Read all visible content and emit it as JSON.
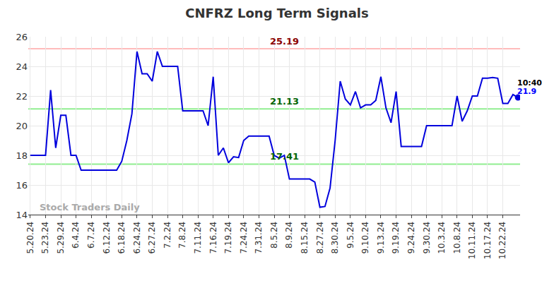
{
  "chart_data": {
    "type": "line",
    "title": "CNFRZ Long Term Signals",
    "watermark": "Stock Traders Daily",
    "color": "#0000dd",
    "grid": true,
    "ylim": [
      14,
      26
    ],
    "yticks": [
      14,
      16,
      18,
      20,
      22,
      24,
      26
    ],
    "categories": [
      "5.20.24",
      null,
      null,
      "5.23.24",
      null,
      null,
      "5.29.24",
      null,
      null,
      "6.4.24",
      null,
      null,
      "6.7.24",
      null,
      null,
      "6.12.24",
      null,
      null,
      "6.18.24",
      null,
      null,
      "6.24.24",
      null,
      null,
      "6.27.24",
      null,
      null,
      "7.2.24",
      null,
      null,
      "7.8.24",
      null,
      null,
      "7.11.24",
      null,
      null,
      "7.16.24",
      null,
      null,
      "7.19.24",
      null,
      null,
      "7.24.24",
      null,
      null,
      "7.31.24",
      null,
      null,
      "8.5.24",
      null,
      null,
      "8.9.24",
      null,
      null,
      "8.15.24",
      null,
      null,
      "8.27.24",
      null,
      null,
      "8.30.24",
      null,
      null,
      "9.5.24",
      null,
      null,
      "9.10.24",
      null,
      null,
      "9.13.24",
      null,
      null,
      "9.19.24",
      null,
      null,
      "9.24.24",
      null,
      null,
      "9.30.24",
      null,
      null,
      "10.3.24",
      null,
      null,
      "10.8.24",
      null,
      null,
      "10.11.24",
      null,
      null,
      "10.17.24",
      null,
      null,
      "10.22.24",
      null,
      null,
      null
    ],
    "values": [
      18,
      18,
      18,
      18,
      22.4,
      18.5,
      20.7,
      20.7,
      18,
      18,
      17,
      17,
      17,
      17,
      17,
      17,
      17,
      17,
      17.6,
      19,
      20.8,
      25,
      23.5,
      23.5,
      23,
      25,
      24,
      24,
      24,
      24,
      21,
      21,
      21,
      21,
      21,
      20,
      23.3,
      18,
      18.5,
      17.5,
      17.9,
      17.85,
      19,
      19.3,
      19.3,
      19.3,
      19.3,
      19.3,
      18,
      17.8,
      18,
      16.4,
      16.4,
      16.4,
      16.4,
      16.4,
      16.2,
      14.5,
      14.55,
      15.8,
      19,
      23,
      21.8,
      21.4,
      22.3,
      21.2,
      21.4,
      21.4,
      21.7,
      23.3,
      21.2,
      20.2,
      22.3,
      18.6,
      18.6,
      18.6,
      18.6,
      18.6,
      20,
      20,
      20,
      20,
      20,
      20,
      22,
      20.3,
      21,
      22,
      22,
      23.2,
      23.2,
      23.25,
      23.2,
      21.5,
      21.5,
      22.1,
      21.9
    ],
    "reference_lines": [
      {
        "value": 25.19,
        "label": "25.19",
        "color": "#ffbbbb",
        "label_color": "#8b0000"
      },
      {
        "value": 21.13,
        "label": "21.13",
        "color": "#90ee90",
        "label_color": "#006400"
      },
      {
        "value": 17.41,
        "label": "17.41",
        "color": "#90ee90",
        "label_color": "#006400"
      }
    ],
    "last_point": {
      "time": "10:40",
      "label": "21.9",
      "time_color": "#000000",
      "label_color": "#0000ff"
    }
  }
}
